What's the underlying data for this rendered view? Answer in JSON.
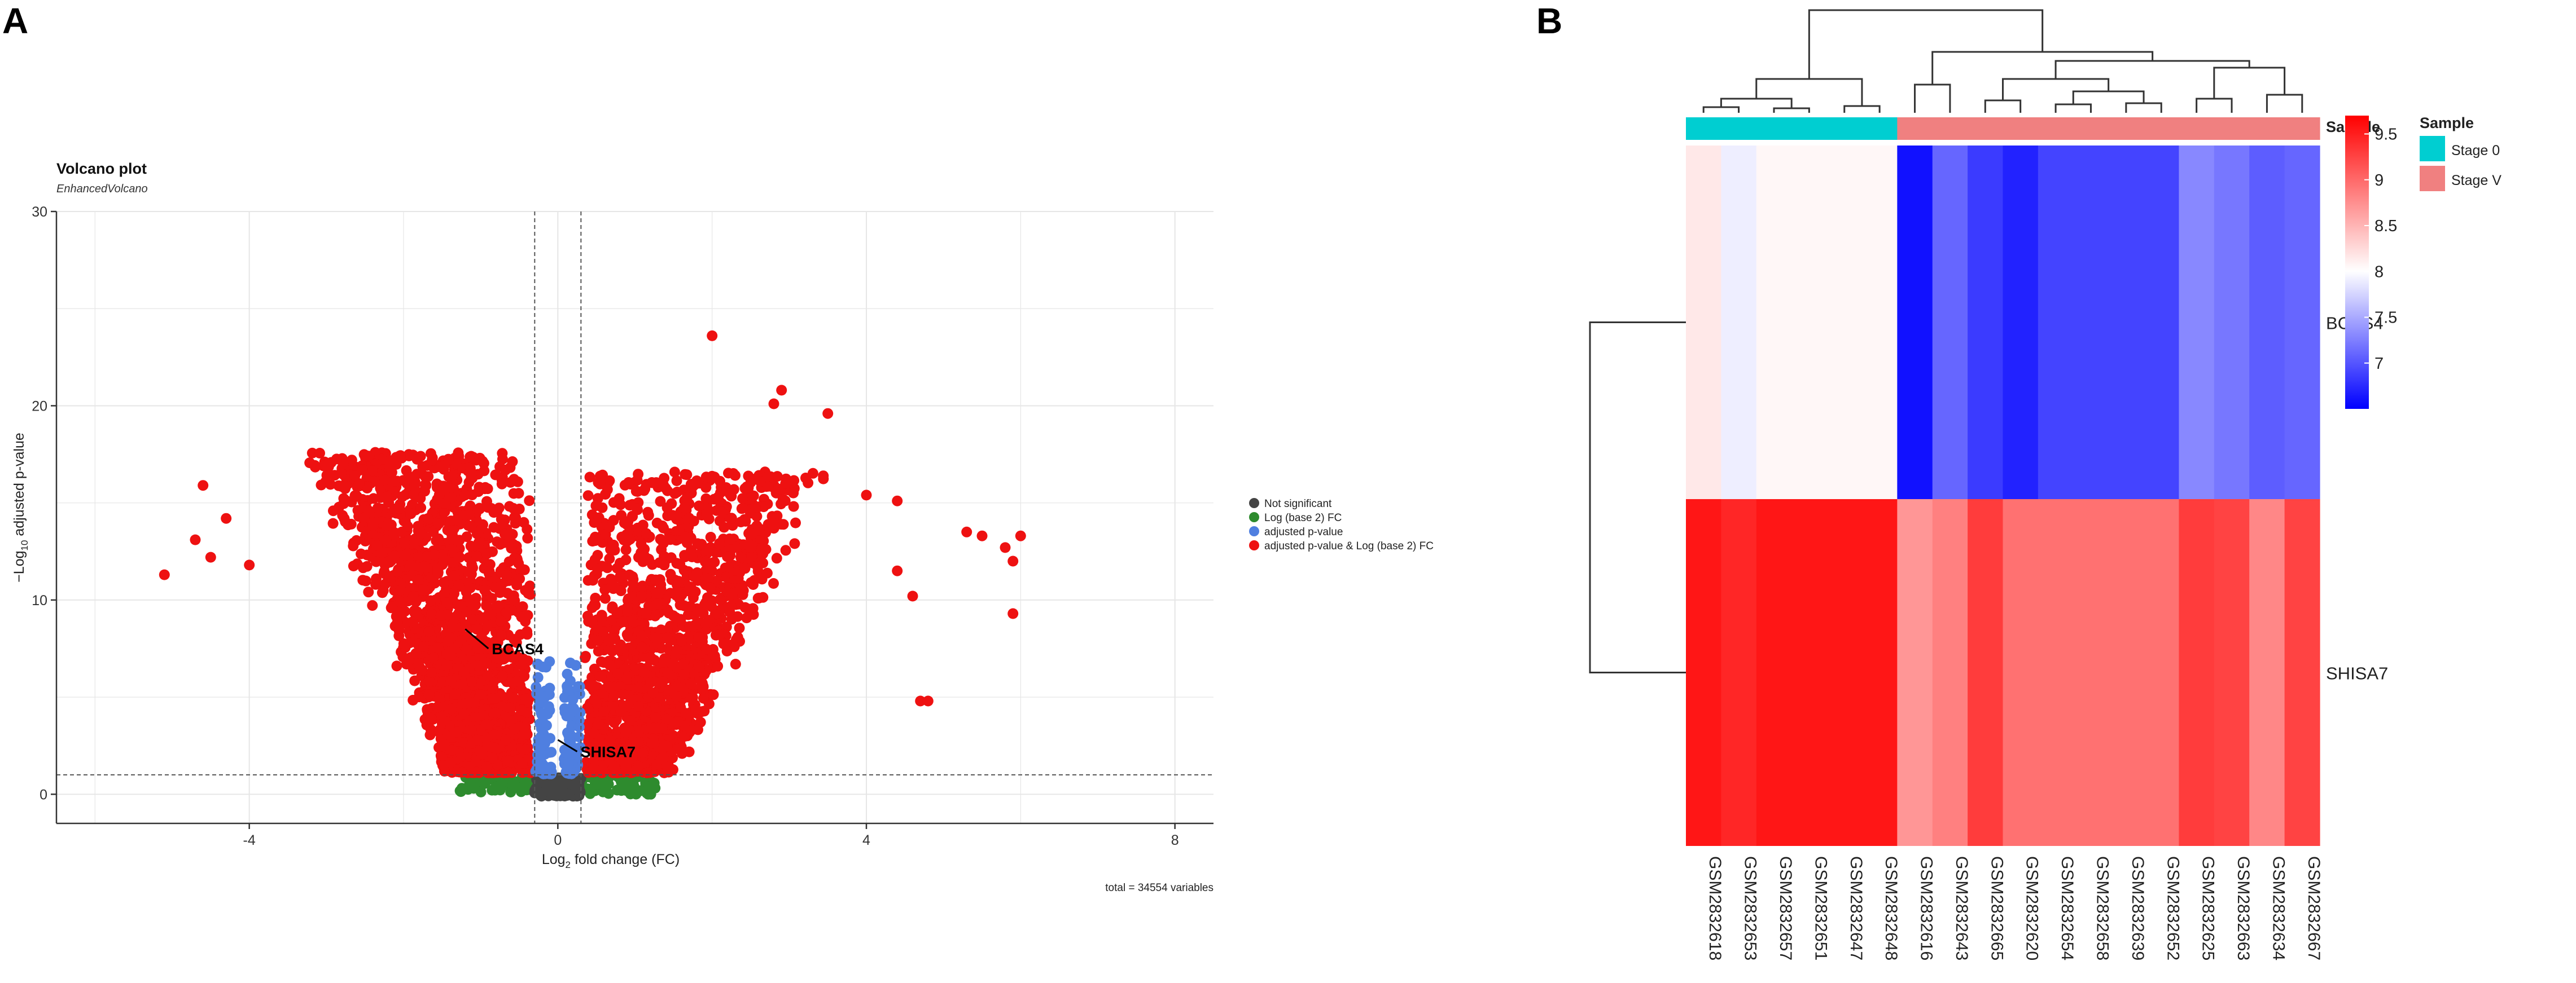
{
  "panels": {
    "a_label": "A",
    "b_label": "B"
  },
  "colors": {
    "not_significant": "#444444",
    "log2fc_only": "#2E8B2E",
    "pvalue_only": "#4F7FE0",
    "both": "#EE1111",
    "stage0": "#00CED1",
    "stageV": "#F08080",
    "heat_low": "#0000FF",
    "heat_mid": "#FFFFFF",
    "heat_high": "#FF0000"
  },
  "volcano": {
    "title": "Volcano plot",
    "subtitle": "EnhancedVolcano",
    "caption": "total = 34554 variables",
    "legend": [
      {
        "label": "Not significant",
        "color_key": "not_significant"
      },
      {
        "label": "Log (base 2) FC",
        "color_key": "log2fc_only"
      },
      {
        "label": "adjusted p-value",
        "color_key": "pvalue_only"
      },
      {
        "label": "adjusted p-value & Log (base 2) FC",
        "color_key": "both"
      }
    ]
  },
  "heatmap": {
    "annotation_title": "Sample",
    "legend_title": "Sample",
    "legend_items": [
      {
        "label": "Stage 0",
        "color_key": "stage0"
      },
      {
        "label": "Stage V",
        "color_key": "stageV"
      }
    ]
  },
  "chart_data": [
    {
      "type": "scatter",
      "title": "Volcano plot",
      "subtitle": "EnhancedVolcano",
      "xlabel": "Log2 fold change (FC)",
      "xlabel_parts": {
        "pre": "Log",
        "sub": "2",
        "post": " fold change (FC)"
      },
      "ylabel": "-Log10 adjusted p-value",
      "ylabel_parts": {
        "pre": "−Log",
        "sub": "10",
        "post": " adjusted p-value"
      },
      "xlim": [
        -6.5,
        8.5
      ],
      "ylim": [
        -1.5,
        30
      ],
      "xticks": [
        -4,
        0,
        4,
        8
      ],
      "yticks": [
        0,
        10,
        20,
        30
      ],
      "fc_cutoff": 0.3,
      "p_cutoff_y": 1,
      "total_variables": 34554,
      "labeled_points": [
        {
          "label": "BCAS4",
          "x": -0.9,
          "y": 7.5,
          "tx": -1.2,
          "ty": 8.5
        },
        {
          "label": "SHISA7",
          "x": 0.25,
          "y": 2.2,
          "tx": 0.0,
          "ty": 2.8
        }
      ],
      "outliers": [
        {
          "x": -5.1,
          "y": 11.3
        },
        {
          "x": -4.7,
          "y": 13.1
        },
        {
          "x": -4.6,
          "y": 15.9
        },
        {
          "x": -4.5,
          "y": 12.2
        },
        {
          "x": -4.3,
          "y": 14.2
        },
        {
          "x": -4.0,
          "y": 11.8
        },
        {
          "x": 2.0,
          "y": 23.6
        },
        {
          "x": 2.9,
          "y": 20.8
        },
        {
          "x": 2.8,
          "y": 20.1
        },
        {
          "x": 3.5,
          "y": 19.6
        },
        {
          "x": 4.0,
          "y": 15.4
        },
        {
          "x": 4.4,
          "y": 15.1
        },
        {
          "x": 4.4,
          "y": 11.5
        },
        {
          "x": 4.6,
          "y": 10.2
        },
        {
          "x": 4.7,
          "y": 4.8
        },
        {
          "x": 4.8,
          "y": 4.8
        },
        {
          "x": 5.3,
          "y": 13.5
        },
        {
          "x": 5.5,
          "y": 13.3
        },
        {
          "x": 5.8,
          "y": 12.7
        },
        {
          "x": 6.0,
          "y": 13.3
        },
        {
          "x": 5.9,
          "y": 12.0
        },
        {
          "x": 5.9,
          "y": 9.3
        }
      ]
    },
    {
      "type": "heatmap",
      "genes": [
        "BCAS4",
        "SHISA7"
      ],
      "samples": [
        "GSM2832618",
        "GSM2832653",
        "GSM2832657",
        "GSM2832651",
        "GSM2832647",
        "GSM2832648",
        "GSM2832616",
        "GSM2832643",
        "GSM2832665",
        "GSM2832620",
        "GSM2832654",
        "GSM2832658",
        "GSM2832639",
        "GSM2832652",
        "GSM2832625",
        "GSM2832663",
        "GSM2832634",
        "GSM2832667"
      ],
      "sample_stage": [
        "Stage 0",
        "Stage 0",
        "Stage 0",
        "Stage 0",
        "Stage 0",
        "Stage 0",
        "Stage V",
        "Stage V",
        "Stage V",
        "Stage V",
        "Stage V",
        "Stage V",
        "Stage V",
        "Stage V",
        "Stage V",
        "Stage V",
        "Stage V",
        "Stage V"
      ],
      "values": [
        [
          8.15,
          7.9,
          8.05,
          8.05,
          8.05,
          8.05,
          6.6,
          7.1,
          6.85,
          6.7,
          6.9,
          6.9,
          6.9,
          6.9,
          7.3,
          7.2,
          7.05,
          7.1
        ],
        [
          9.55,
          9.45,
          9.55,
          9.55,
          9.55,
          9.55,
          8.7,
          8.85,
          9.3,
          8.95,
          8.95,
          8.95,
          8.95,
          8.95,
          9.3,
          9.25,
          8.8,
          9.25
        ]
      ],
      "color_range": [
        6.5,
        9.7
      ],
      "colorbar_ticks": [
        7,
        7.5,
        8,
        8.5,
        9,
        9.5
      ],
      "annotation": "Sample"
    }
  ]
}
